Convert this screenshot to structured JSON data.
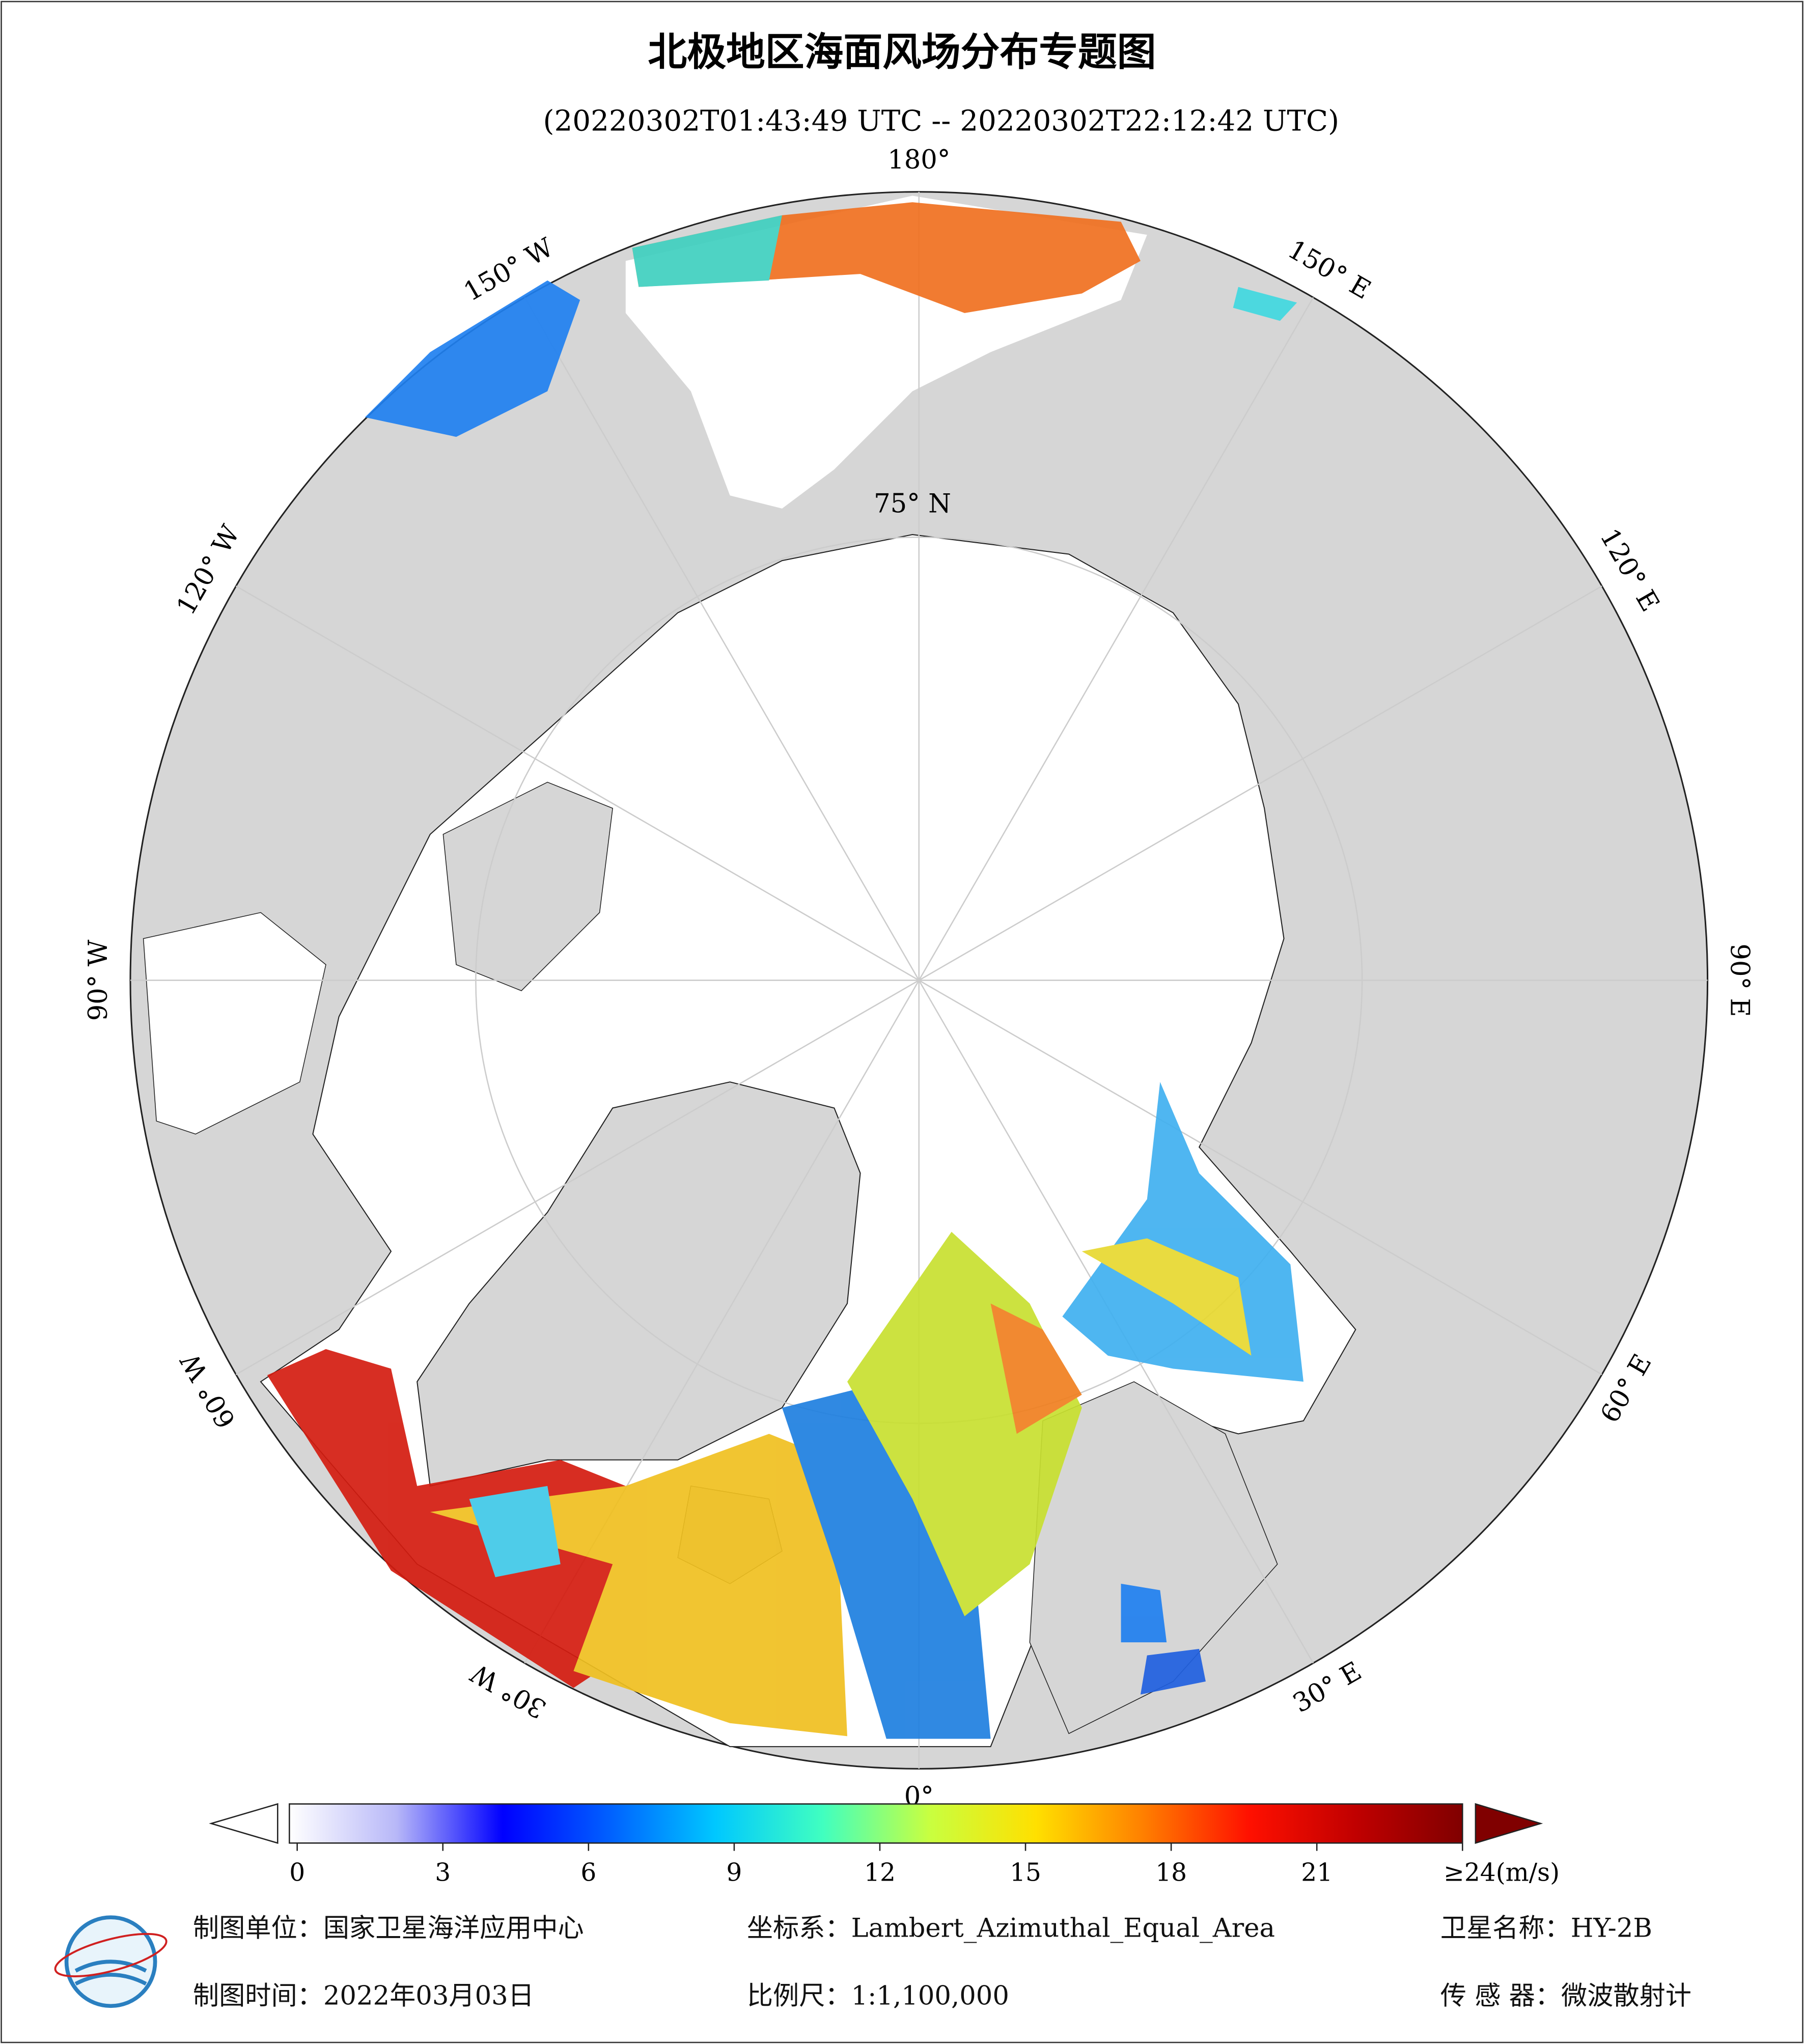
{
  "title": "北极地区海面风场分布专题图",
  "subtitle": "(20220302T01:43:49 UTC -- 20220302T22:12:42 UTC)",
  "map": {
    "longitude_labels": [
      {
        "value": 180,
        "label": "180°"
      },
      {
        "value": 150,
        "label": "150° E"
      },
      {
        "value": 120,
        "label": "120° E"
      },
      {
        "value": 90,
        "label": "90° E"
      },
      {
        "value": 60,
        "label": "60° E"
      },
      {
        "value": 30,
        "label": "30° E"
      },
      {
        "value": 0,
        "label": "0°"
      },
      {
        "value": -30,
        "label": "30° W"
      },
      {
        "value": -60,
        "label": "60° W"
      },
      {
        "value": -90,
        "label": "90° W"
      },
      {
        "value": -120,
        "label": "120° W"
      },
      {
        "value": -150,
        "label": "150° W"
      }
    ],
    "latitude_label": "75° N"
  },
  "colorbar": {
    "range": [
      0,
      24
    ],
    "ticks": [
      0,
      3,
      6,
      9,
      12,
      15,
      18,
      21,
      {
        "value": 24,
        "label": "≥24(m/s)"
      }
    ],
    "colors": [
      "#ffffff",
      "#b8b8f8",
      "#0000ff",
      "#0060ff",
      "#00c8ff",
      "#40ffc0",
      "#c8ff40",
      "#ffe000",
      "#ff8000",
      "#ff1000",
      "#c00000",
      "#800000"
    ]
  },
  "footer": {
    "producer": "制图单位：国家卫星海洋应用中心",
    "date": "制图时间：2022年03月03日",
    "projection": "坐标系：Lambert_Azimuthal_Equal_Area",
    "scale": "比例尺：1:1,100,000",
    "satellite": "卫星名称：HY-2B",
    "sensor": "传 感 器：微波散射计"
  }
}
